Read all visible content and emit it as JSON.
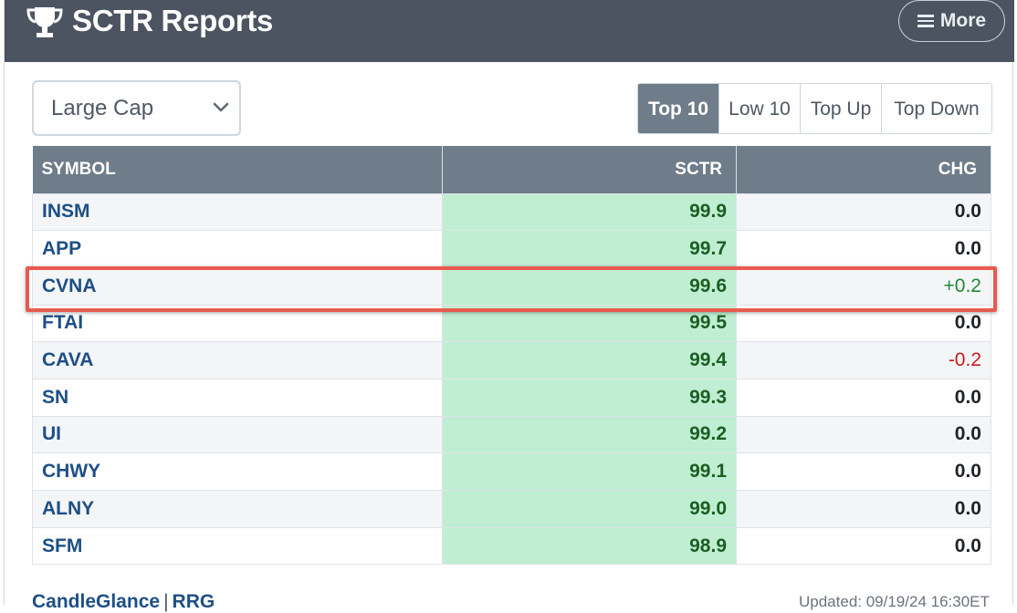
{
  "header": {
    "title": "SCTR Reports",
    "more_label": "More"
  },
  "controls": {
    "universe_select": "Large Cap",
    "tabs": [
      {
        "label": "Top 10",
        "active": true
      },
      {
        "label": "Low 10",
        "active": false
      },
      {
        "label": "Top Up",
        "active": false
      },
      {
        "label": "Top Down",
        "active": false
      }
    ]
  },
  "table": {
    "columns": [
      "SYMBOL",
      "SCTR",
      "CHG"
    ],
    "rows": [
      {
        "symbol": "INSM",
        "sctr": "99.9",
        "chg": "0.0",
        "dir": "flat"
      },
      {
        "symbol": "APP",
        "sctr": "99.7",
        "chg": "0.0",
        "dir": "flat"
      },
      {
        "symbol": "CVNA",
        "sctr": "99.6",
        "chg": "+0.2",
        "dir": "up"
      },
      {
        "symbol": "FTAI",
        "sctr": "99.5",
        "chg": "0.0",
        "dir": "flat"
      },
      {
        "symbol": "CAVA",
        "sctr": "99.4",
        "chg": "-0.2",
        "dir": "down"
      },
      {
        "symbol": "SN",
        "sctr": "99.3",
        "chg": "0.0",
        "dir": "flat"
      },
      {
        "symbol": "UI",
        "sctr": "99.2",
        "chg": "0.0",
        "dir": "flat"
      },
      {
        "symbol": "CHWY",
        "sctr": "99.1",
        "chg": "0.0",
        "dir": "flat"
      },
      {
        "symbol": "ALNY",
        "sctr": "99.0",
        "chg": "0.0",
        "dir": "flat"
      },
      {
        "symbol": "SFM",
        "sctr": "98.9",
        "chg": "0.0",
        "dir": "flat"
      }
    ]
  },
  "footer": {
    "link1": "CandleGlance",
    "separator": "|",
    "link2": "RRG",
    "updated": "Updated: 09/19/24 16:30ET"
  },
  "colors": {
    "header_bg": "#4c5461",
    "table_header_bg": "#6f7c89",
    "sctr_cell_bg": "#c0eed2",
    "highlight_border": "#e85a4f",
    "positive": "#23873a",
    "negative": "#c21d1d"
  },
  "icons": {
    "trophy": "trophy-icon",
    "menu": "hamburger-menu-icon",
    "dropdown": "chevron-down-icon"
  },
  "annotation": {
    "highlighted_symbol": "CVNA"
  }
}
